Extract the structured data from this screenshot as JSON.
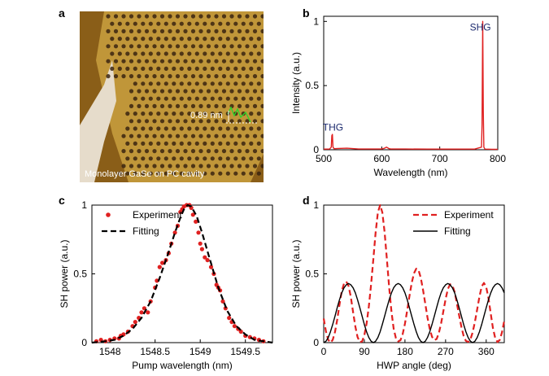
{
  "panels": {
    "a": {
      "letter": "a",
      "caption": "Monolayer GaSe on PC cavity",
      "height_label": "0.89 nm",
      "colors": {
        "background": "#8a5e18",
        "film": "#c9a040",
        "hole": "#3a2410",
        "substrate_edge": "#e6dccb"
      }
    },
    "b": {
      "letter": "b"
    },
    "c": {
      "letter": "c"
    },
    "d": {
      "letter": "d"
    }
  },
  "chart_data": [
    {
      "id": "b",
      "type": "line",
      "xlabel": "Wavelength (nm)",
      "ylabel": "Intensity (a.u.)",
      "xlim": [
        500,
        800
      ],
      "ylim": [
        0,
        1.04
      ],
      "xticks": [
        500,
        600,
        700,
        800
      ],
      "yticks": [
        0,
        0.5,
        1
      ],
      "ytick_labels": [
        "0",
        "0.5",
        "1"
      ],
      "annotations": [
        {
          "text": "THG",
          "x": 516,
          "y": 0.15
        },
        {
          "text": "SHG",
          "x": 770,
          "y": 0.93
        }
      ],
      "series": [
        {
          "color": "#e02020",
          "x": [
            500,
            510,
            513,
            514,
            515,
            516,
            518,
            525,
            540,
            560,
            580,
            600,
            605,
            608,
            612,
            615,
            640,
            680,
            720,
            760,
            772,
            773,
            774,
            775,
            776,
            778,
            790,
            800
          ],
          "y": [
            0.005,
            0.005,
            0.02,
            0.11,
            0.12,
            0.02,
            0.008,
            0.01,
            0.012,
            0.006,
            0.006,
            0.006,
            0.012,
            0.02,
            0.01,
            0.006,
            0.006,
            0.005,
            0.005,
            0.005,
            0.02,
            0.2,
            1.0,
            0.3,
            0.02,
            0.005,
            0.004,
            0.004
          ]
        }
      ]
    },
    {
      "id": "c",
      "type": "scatter",
      "xlabel": "Pump wavelength (nm)",
      "ylabel": "SH power (a.u.)",
      "xlim": [
        1547.8,
        1549.8
      ],
      "ylim": [
        0,
        1
      ],
      "xticks": [
        1548,
        1548.5,
        1549,
        1549.5
      ],
      "yticks": [
        0,
        0.5,
        1
      ],
      "ytick_labels": [
        "0",
        "0.5",
        "1"
      ],
      "legend_position": "top-left",
      "series": [
        {
          "name": "Experiment",
          "kind": "points",
          "color": "#e02020",
          "x": [
            1547.85,
            1547.9,
            1547.95,
            1548.0,
            1548.05,
            1548.1,
            1548.12,
            1548.15,
            1548.2,
            1548.25,
            1548.28,
            1548.32,
            1548.35,
            1548.38,
            1548.42,
            1548.45,
            1548.5,
            1548.52,
            1548.55,
            1548.58,
            1548.62,
            1548.65,
            1548.68,
            1548.72,
            1548.75,
            1548.78,
            1548.8,
            1548.82,
            1548.85,
            1548.88,
            1548.9,
            1548.92,
            1548.95,
            1548.98,
            1549.0,
            1549.02,
            1549.05,
            1549.08,
            1549.12,
            1549.15,
            1549.18,
            1549.2,
            1549.22,
            1549.25,
            1549.28,
            1549.32,
            1549.35,
            1549.38,
            1549.42,
            1549.45,
            1549.5,
            1549.55,
            1549.6,
            1549.65,
            1549.7
          ],
          "y": [
            0.01,
            0.02,
            0.01,
            0.02,
            0.03,
            0.03,
            0.05,
            0.06,
            0.08,
            0.12,
            0.15,
            0.18,
            0.22,
            0.25,
            0.22,
            0.3,
            0.4,
            0.45,
            0.55,
            0.58,
            0.6,
            0.65,
            0.72,
            0.8,
            0.85,
            0.95,
            0.97,
            0.99,
            1.0,
            1.0,
            0.98,
            0.93,
            0.88,
            0.8,
            0.72,
            0.68,
            0.62,
            0.6,
            0.55,
            0.5,
            0.42,
            0.4,
            0.38,
            0.3,
            0.25,
            0.18,
            0.15,
            0.12,
            0.1,
            0.08,
            0.05,
            0.04,
            0.03,
            0.02,
            0.01
          ]
        },
        {
          "name": "Fitting",
          "kind": "dashed-line",
          "color": "#000000",
          "x": [
            1547.8,
            1547.95,
            1548.05,
            1548.15,
            1548.25,
            1548.35,
            1548.45,
            1548.55,
            1548.65,
            1548.72,
            1548.78,
            1548.82,
            1548.86,
            1548.9,
            1548.96,
            1549.02,
            1549.1,
            1549.2,
            1549.3,
            1549.4,
            1549.5,
            1549.6,
            1549.7,
            1549.8
          ],
          "y": [
            0.0,
            0.01,
            0.02,
            0.05,
            0.1,
            0.18,
            0.3,
            0.47,
            0.66,
            0.8,
            0.91,
            0.97,
            1.0,
            0.99,
            0.92,
            0.8,
            0.62,
            0.4,
            0.23,
            0.12,
            0.06,
            0.02,
            0.01,
            0.0
          ]
        }
      ]
    },
    {
      "id": "d",
      "type": "line",
      "xlabel": "HWP angle (deg)",
      "ylabel": "SH power (a.u.)",
      "xlim": [
        0,
        400
      ],
      "ylim": [
        0,
        1
      ],
      "xticks": [
        0,
        90,
        180,
        270,
        360
      ],
      "yticks": [
        0,
        0.5,
        1
      ],
      "ytick_labels": [
        "0",
        "0.5",
        "1"
      ],
      "legend_position": "top-right",
      "series": [
        {
          "name": "Experiment",
          "kind": "dashed-line",
          "color": "#e02020",
          "x": [
            0,
            5,
            10,
            15,
            20,
            25,
            30,
            35,
            40,
            45,
            50,
            55,
            60,
            65,
            70,
            75,
            80,
            85,
            90,
            95,
            100,
            105,
            110,
            115,
            120,
            125,
            130,
            135,
            140,
            145,
            150,
            155,
            160,
            165,
            170,
            175,
            180,
            185,
            190,
            195,
            200,
            205,
            210,
            215,
            220,
            225,
            230,
            235,
            240,
            245,
            250,
            255,
            260,
            265,
            270,
            275,
            280,
            285,
            290,
            295,
            300,
            305,
            310,
            315,
            320,
            325,
            330,
            335,
            340,
            345,
            350,
            355,
            360,
            365,
            370,
            375,
            380,
            385,
            390,
            395,
            400
          ],
          "y": [
            0.175,
            0.079,
            0.02,
            0.0,
            0.02,
            0.078,
            0.167,
            0.276,
            0.375,
            0.43,
            0.444,
            0.413,
            0.333,
            0.223,
            0.117,
            0.041,
            0.004,
            0.008,
            0.052,
            0.138,
            0.264,
            0.425,
            0.612,
            0.799,
            0.947,
            1.0,
            0.946,
            0.802,
            0.605,
            0.4,
            0.226,
            0.101,
            0.032,
            0.009,
            0.018,
            0.062,
            0.138,
            0.236,
            0.338,
            0.434,
            0.505,
            0.538,
            0.529,
            0.473,
            0.384,
            0.282,
            0.182,
            0.099,
            0.042,
            0.019,
            0.026,
            0.068,
            0.139,
            0.228,
            0.317,
            0.389,
            0.424,
            0.416,
            0.368,
            0.286,
            0.198,
            0.114,
            0.05,
            0.013,
            0.005,
            0.024,
            0.074,
            0.15,
            0.242,
            0.335,
            0.409,
            0.434,
            0.404,
            0.323,
            0.21,
            0.104,
            0.033,
            0.004,
            0.02,
            0.075,
            0.16
          ]
        },
        {
          "name": "Fitting",
          "kind": "line",
          "color": "#000000",
          "x": [
            0,
            5,
            10,
            15,
            20,
            25,
            30,
            35,
            40,
            45,
            50,
            55,
            60,
            65,
            70,
            75,
            80,
            85,
            90,
            95,
            100,
            105,
            110,
            115,
            120,
            125,
            130,
            135,
            140,
            145,
            150,
            155,
            160,
            165,
            170,
            175,
            180,
            185,
            190,
            195,
            200,
            205,
            210,
            215,
            220,
            225,
            230,
            235,
            240,
            245,
            250,
            255,
            260,
            265,
            270,
            275,
            280,
            285,
            290,
            295,
            300,
            305,
            310,
            315,
            320,
            325,
            330,
            335,
            340,
            345,
            350,
            355,
            360,
            365,
            370,
            375,
            380,
            385,
            390,
            395,
            400
          ],
          "y": [
            0.0,
            0.01,
            0.037,
            0.079,
            0.133,
            0.193,
            0.254,
            0.312,
            0.362,
            0.399,
            0.421,
            0.43,
            0.421,
            0.399,
            0.362,
            0.312,
            0.254,
            0.193,
            0.133,
            0.079,
            0.037,
            0.01,
            0.0,
            0.01,
            0.037,
            0.079,
            0.133,
            0.193,
            0.254,
            0.312,
            0.362,
            0.399,
            0.421,
            0.43,
            0.421,
            0.399,
            0.362,
            0.312,
            0.254,
            0.193,
            0.133,
            0.079,
            0.037,
            0.01,
            0.0,
            0.01,
            0.037,
            0.079,
            0.133,
            0.193,
            0.254,
            0.312,
            0.362,
            0.399,
            0.421,
            0.43,
            0.421,
            0.399,
            0.362,
            0.312,
            0.254,
            0.193,
            0.133,
            0.079,
            0.037,
            0.01,
            0.0,
            0.01,
            0.037,
            0.079,
            0.133,
            0.193,
            0.254,
            0.312,
            0.362,
            0.399,
            0.421,
            0.43,
            0.421,
            0.399,
            0.362
          ]
        }
      ]
    }
  ]
}
